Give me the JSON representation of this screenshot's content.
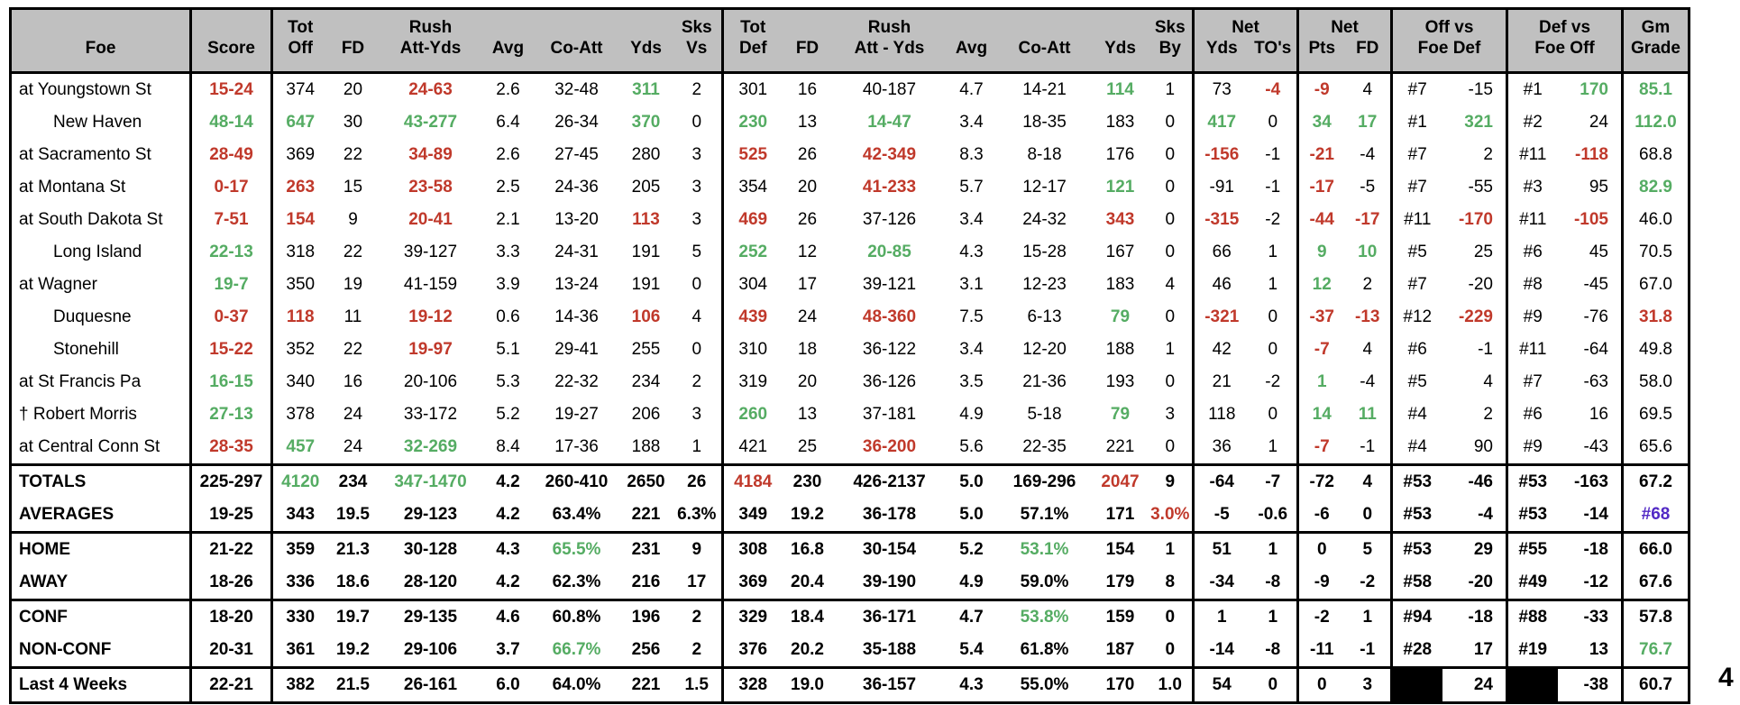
{
  "colors": {
    "red": "#C0392B",
    "green": "#55AC63",
    "purple": "#5229C5",
    "black_fill": "#000000",
    "header_bg": "#C0C0C0",
    "highlight": "#FFE94A"
  },
  "stray_char": "4",
  "header": {
    "foe": "Foe",
    "score": "Score",
    "off": {
      "l1_tot": "Tot",
      "l1_rush": "Rush",
      "l1_sks": "Sks",
      "off": "Off",
      "fd": "FD",
      "att_yds": "Att-Yds",
      "avg": "Avg",
      "co_att": "Co-Att",
      "yds": "Yds",
      "vs": "Vs"
    },
    "def": {
      "l1_tot": "Tot",
      "l1_rush": "Rush",
      "l1_sks": "Sks",
      "def": "Def",
      "fd": "FD",
      "att_yds": "Att - Yds",
      "avg": "Avg",
      "co_att": "Co-Att",
      "yds": "Yds",
      "by": "By"
    },
    "net_yds": {
      "l1": "Net",
      "yds": "Yds",
      "tos": "TO's"
    },
    "net_pts": {
      "l1": "Net",
      "pts": "Pts",
      "fd": "FD"
    },
    "off_vs": {
      "l1": "Off vs",
      "l2": "Foe Def"
    },
    "def_vs": {
      "l1": "Def vs",
      "l2": "Foe Off"
    },
    "gm": {
      "l1": "Gm",
      "l2": "Grade"
    }
  },
  "table": {
    "rows": [
      {
        "label": "at Youngstown St",
        "type": "game",
        "cells": [
          {
            "t": "15-24",
            "c": "r"
          },
          "374",
          "20",
          {
            "t": "24-63",
            "c": "r"
          },
          "2.6",
          "32-48",
          {
            "t": "311",
            "c": "g"
          },
          "2",
          "301",
          "16",
          "40-187",
          "4.7",
          "14-21",
          {
            "t": "114",
            "c": "g"
          },
          "1",
          "73",
          {
            "t": "-4",
            "c": "r"
          },
          {
            "t": "-9",
            "c": "r"
          },
          "4",
          "#7",
          "-15",
          "#1",
          {
            "t": "170",
            "c": "g"
          },
          {
            "t": "85.1",
            "c": "g"
          }
        ]
      },
      {
        "label": "New Haven",
        "type": "game",
        "indent": true,
        "cells": [
          {
            "t": "48-14",
            "c": "g"
          },
          {
            "t": "647",
            "c": "g"
          },
          "30",
          {
            "t": "43-277",
            "c": "g"
          },
          "6.4",
          "26-34",
          {
            "t": "370",
            "c": "g"
          },
          "0",
          {
            "t": "230",
            "c": "g"
          },
          "13",
          {
            "t": "14-47",
            "c": "g"
          },
          "3.4",
          "18-35",
          "183",
          "0",
          {
            "t": "417",
            "c": "g"
          },
          "0",
          {
            "t": "34",
            "c": "g"
          },
          {
            "t": "17",
            "c": "g"
          },
          "#1",
          {
            "t": "321",
            "c": "g"
          },
          "#2",
          "24",
          {
            "t": "112.0",
            "c": "g"
          }
        ]
      },
      {
        "label": "at Sacramento St",
        "type": "game",
        "cells": [
          {
            "t": "28-49",
            "c": "r"
          },
          "369",
          "22",
          {
            "t": "34-89",
            "c": "r"
          },
          "2.6",
          "27-45",
          "280",
          "3",
          {
            "t": "525",
            "c": "r"
          },
          "26",
          {
            "t": "42-349",
            "c": "r"
          },
          "8.3",
          "8-18",
          "176",
          "0",
          {
            "t": "-156",
            "c": "r"
          },
          "-1",
          {
            "t": "-21",
            "c": "r"
          },
          "-4",
          "#7",
          "2",
          "#11",
          {
            "t": "-118",
            "c": "r"
          },
          "68.8"
        ]
      },
      {
        "label": "at Montana St",
        "type": "game",
        "cells": [
          {
            "t": "0-17",
            "c": "r"
          },
          {
            "t": "263",
            "c": "r"
          },
          "15",
          {
            "t": "23-58",
            "c": "r"
          },
          "2.5",
          "24-36",
          "205",
          "3",
          "354",
          "20",
          {
            "t": "41-233",
            "c": "r"
          },
          "5.7",
          "12-17",
          {
            "t": "121",
            "c": "g"
          },
          "0",
          "-91",
          "-1",
          {
            "t": "-17",
            "c": "r"
          },
          "-5",
          "#7",
          "-55",
          "#3",
          "95",
          {
            "t": "82.9",
            "c": "g"
          }
        ]
      },
      {
        "label": "at South Dakota St",
        "type": "game",
        "cells": [
          {
            "t": "7-51",
            "c": "r"
          },
          {
            "t": "154",
            "c": "r"
          },
          "9",
          {
            "t": "20-41",
            "c": "r"
          },
          "2.1",
          "13-20",
          {
            "t": "113",
            "c": "r"
          },
          "3",
          {
            "t": "469",
            "c": "r"
          },
          "26",
          "37-126",
          "3.4",
          "24-32",
          {
            "t": "343",
            "c": "r"
          },
          "0",
          {
            "t": "-315",
            "c": "r"
          },
          "-2",
          {
            "t": "-44",
            "c": "r"
          },
          {
            "t": "-17",
            "c": "r"
          },
          "#11",
          {
            "t": "-170",
            "c": "r"
          },
          "#11",
          {
            "t": "-105",
            "c": "r"
          },
          "46.0"
        ]
      },
      {
        "label": "Long Island",
        "type": "game",
        "indent": true,
        "cells": [
          {
            "t": "22-13",
            "c": "g"
          },
          "318",
          "22",
          "39-127",
          "3.3",
          "24-31",
          "191",
          "5",
          {
            "t": "252",
            "c": "g"
          },
          "12",
          {
            "t": "20-85",
            "c": "g"
          },
          "4.3",
          "15-28",
          "167",
          "0",
          "66",
          "1",
          {
            "t": "9",
            "c": "g"
          },
          {
            "t": "10",
            "c": "g"
          },
          "#5",
          "25",
          "#6",
          "45",
          "70.5"
        ]
      },
      {
        "label": "at Wagner",
        "type": "game",
        "cells": [
          {
            "t": "19-7",
            "c": "g"
          },
          "350",
          "19",
          "41-159",
          "3.9",
          "13-24",
          "191",
          "0",
          "304",
          "17",
          "39-121",
          "3.1",
          "12-23",
          "183",
          "4",
          "46",
          "1",
          {
            "t": "12",
            "c": "g"
          },
          "2",
          "#7",
          "-20",
          "#8",
          "-45",
          "67.0"
        ]
      },
      {
        "label": "Duquesne",
        "type": "game",
        "indent": true,
        "cells": [
          {
            "t": "0-37",
            "c": "r"
          },
          {
            "t": "118",
            "c": "r"
          },
          "11",
          {
            "t": "19-12",
            "c": "r"
          },
          "0.6",
          "14-36",
          {
            "t": "106",
            "c": "r"
          },
          "4",
          {
            "t": "439",
            "c": "r"
          },
          "24",
          {
            "t": "48-360",
            "c": "r"
          },
          "7.5",
          "6-13",
          {
            "t": "79",
            "c": "g"
          },
          "0",
          {
            "t": "-321",
            "c": "r"
          },
          "0",
          {
            "t": "-37",
            "c": "r"
          },
          {
            "t": "-13",
            "c": "r"
          },
          "#12",
          {
            "t": "-229",
            "c": "r"
          },
          "#9",
          "-76",
          {
            "t": "31.8",
            "c": "r"
          }
        ]
      },
      {
        "label": "Stonehill",
        "type": "game",
        "indent": true,
        "cells": [
          {
            "t": "15-22",
            "c": "r"
          },
          "352",
          "22",
          {
            "t": "19-97",
            "c": "r"
          },
          "5.1",
          "29-41",
          "255",
          "0",
          "310",
          "18",
          "36-122",
          "3.4",
          "12-20",
          "188",
          "1",
          "42",
          "0",
          {
            "t": "-7",
            "c": "r"
          },
          "4",
          "#6",
          "-1",
          "#11",
          "-64",
          "49.8"
        ]
      },
      {
        "label": "at St Francis Pa",
        "type": "game",
        "cells": [
          {
            "t": "16-15",
            "c": "g"
          },
          "340",
          "16",
          "20-106",
          "5.3",
          "22-32",
          "234",
          "2",
          "319",
          "20",
          "36-126",
          "3.5",
          "21-36",
          "193",
          "0",
          "21",
          "-2",
          {
            "t": "1",
            "c": "g"
          },
          "-4",
          "#5",
          "4",
          "#7",
          "-63",
          "58.0"
        ]
      },
      {
        "label": "† Robert Morris",
        "type": "game",
        "cells": [
          {
            "t": "27-13",
            "c": "g"
          },
          "378",
          "24",
          "33-172",
          "5.2",
          "19-27",
          "206",
          "3",
          {
            "t": "260",
            "c": "g"
          },
          "13",
          "37-181",
          "4.9",
          "5-18",
          {
            "t": "79",
            "c": "g"
          },
          "3",
          "118",
          "0",
          {
            "t": "14",
            "c": "g"
          },
          {
            "t": "11",
            "c": "g"
          },
          "#4",
          "2",
          "#6",
          "16",
          "69.5"
        ]
      },
      {
        "label": "at Central Conn St",
        "type": "game",
        "cells": [
          {
            "t": "28-35",
            "c": "r"
          },
          {
            "t": "457",
            "c": "g"
          },
          "24",
          {
            "t": "32-269",
            "c": "g"
          },
          "8.4",
          "17-36",
          "188",
          "1",
          "421",
          "25",
          {
            "t": "36-200",
            "c": "r"
          },
          "5.6",
          "22-35",
          "221",
          "0",
          "36",
          "1",
          {
            "t": "-7",
            "c": "r"
          },
          "-1",
          "#4",
          "90",
          "#9",
          "-43",
          "65.6"
        ]
      },
      {
        "label": "TOTALS",
        "type": "summary",
        "thick_top": true,
        "highlight_left": true,
        "cells": [
          "225-297",
          {
            "t": "4120",
            "c": "g"
          },
          "234",
          {
            "t": "347-1470",
            "c": "g"
          },
          "4.2",
          "260-410",
          "2650",
          "26",
          {
            "t": "4184",
            "c": "r"
          },
          "230",
          "426-2137",
          "5.0",
          "169-296",
          {
            "t": "2047",
            "c": "r"
          },
          "9",
          "-64",
          "-7",
          "-72",
          "4",
          "#53",
          "-46",
          "#53",
          "-163",
          "67.2"
        ]
      },
      {
        "label": "AVERAGES",
        "type": "summary",
        "cells": [
          "19-25",
          "343",
          "19.5",
          "29-123",
          "4.2",
          "63.4%",
          "221",
          "6.3%",
          "349",
          "19.2",
          "36-178",
          "5.0",
          "57.1%",
          "171",
          {
            "t": "3.0%",
            "c": "r"
          },
          "-5",
          "-0.6",
          "-6",
          "0",
          "#53",
          "-4",
          "#53",
          "-14",
          {
            "t": "#68",
            "c": "p"
          }
        ]
      },
      {
        "label": "HOME",
        "type": "summary",
        "thick_top": true,
        "cells": [
          "21-22",
          "359",
          "21.3",
          "30-128",
          "4.3",
          {
            "t": "65.5%",
            "c": "g"
          },
          "231",
          "9",
          "308",
          "16.8",
          "30-154",
          "5.2",
          {
            "t": "53.1%",
            "c": "g"
          },
          "154",
          "1",
          "51",
          "1",
          "0",
          "5",
          "#53",
          "29",
          "#55",
          "-18",
          "66.0"
        ]
      },
      {
        "label": "AWAY",
        "type": "summary",
        "cells": [
          "18-26",
          "336",
          "18.6",
          "28-120",
          "4.2",
          "62.3%",
          "216",
          "17",
          "369",
          "20.4",
          "39-190",
          "4.9",
          "59.0%",
          "179",
          "8",
          "-34",
          "-8",
          "-9",
          "-2",
          "#58",
          "-20",
          "#49",
          "-12",
          "67.6"
        ]
      },
      {
        "label": "CONF",
        "type": "summary",
        "thick_top": true,
        "cells": [
          "18-20",
          "330",
          "19.7",
          "29-135",
          "4.6",
          "60.8%",
          "196",
          "2",
          "329",
          "18.4",
          "36-171",
          "4.7",
          {
            "t": "53.8%",
            "c": "g"
          },
          "159",
          "0",
          "1",
          "1",
          "-2",
          "1",
          "#94",
          "-18",
          "#88",
          "-33",
          "57.8"
        ]
      },
      {
        "label": "NON-CONF",
        "type": "summary",
        "highlight_left": true,
        "cells": [
          "20-31",
          "361",
          "19.2",
          "29-106",
          "3.7",
          {
            "t": "66.7%",
            "c": "g"
          },
          "256",
          "2",
          "376",
          "20.2",
          "35-188",
          "5.4",
          "61.8%",
          "187",
          "0",
          "-14",
          "-8",
          "-11",
          "-1",
          "#28",
          "17",
          "#19",
          "13",
          {
            "t": "76.7",
            "c": "g"
          }
        ]
      },
      {
        "label": "Last 4 Weeks",
        "type": "summary",
        "thick_top": true,
        "cells": [
          "22-21",
          "382",
          "21.5",
          "26-161",
          "6.0",
          "64.0%",
          "221",
          "1.5",
          "328",
          "19.0",
          "36-157",
          "4.3",
          "55.0%",
          "170",
          "1.0",
          "54",
          "0",
          "0",
          "3",
          {
            "t": "",
            "c": "k"
          },
          "24",
          {
            "t": "",
            "c": "k"
          },
          "-38",
          "60.7"
        ]
      }
    ]
  }
}
